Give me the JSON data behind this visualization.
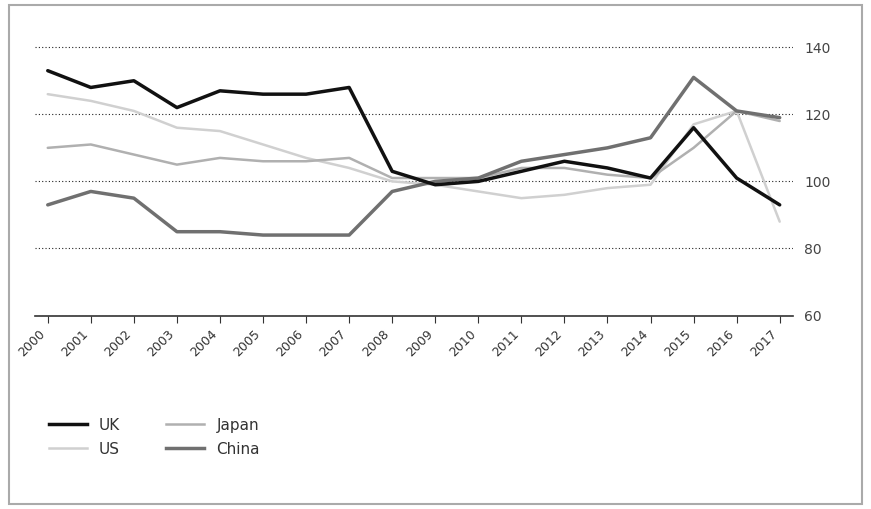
{
  "years": [
    2000,
    2001,
    2002,
    2003,
    2004,
    2005,
    2006,
    2007,
    2008,
    2009,
    2010,
    2011,
    2012,
    2013,
    2014,
    2015,
    2016,
    2017
  ],
  "UK": [
    133,
    128,
    130,
    122,
    127,
    126,
    126,
    128,
    103,
    99,
    100,
    103,
    106,
    104,
    101,
    116,
    101,
    93
  ],
  "US": [
    126,
    124,
    121,
    116,
    115,
    111,
    107,
    104,
    100,
    99,
    97,
    95,
    96,
    98,
    99,
    117,
    121,
    88
  ],
  "Japan": [
    110,
    111,
    108,
    105,
    107,
    106,
    106,
    107,
    101,
    101,
    101,
    104,
    104,
    102,
    101,
    110,
    121,
    118
  ],
  "China": [
    93,
    97,
    95,
    85,
    85,
    84,
    84,
    84,
    97,
    100,
    101,
    106,
    108,
    110,
    113,
    131,
    121,
    119
  ],
  "UK_color": "#111111",
  "US_color": "#d0d0d0",
  "Japan_color": "#b0b0b0",
  "China_color": "#707070",
  "UK_lw": 2.5,
  "US_lw": 1.8,
  "Japan_lw": 1.8,
  "China_lw": 2.5,
  "yticks": [
    60,
    80,
    100,
    120,
    140
  ],
  "ylim": [
    60,
    148
  ],
  "xlim_min": 1999.7,
  "xlim_max": 2017.3,
  "background_color": "#ffffff",
  "plot_bg_color": "#ffffff",
  "grid_color": "#222222",
  "grid_lw": 0.8,
  "legend_items": [
    {
      "label": "UK",
      "color": "#111111",
      "lw": 2.5
    },
    {
      "label": "US",
      "color": "#d0d0d0",
      "lw": 1.8
    },
    {
      "label": "Japan",
      "color": "#b0b0b0",
      "lw": 1.8
    },
    {
      "label": "China",
      "color": "#707070",
      "lw": 2.5
    }
  ]
}
